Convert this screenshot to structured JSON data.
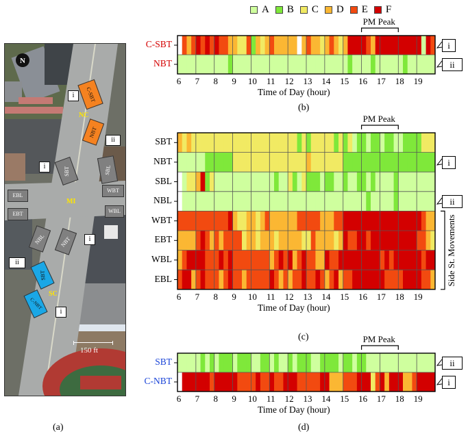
{
  "legend": {
    "items": [
      {
        "label": "A",
        "color": "#cfff9e"
      },
      {
        "label": "B",
        "color": "#7fe83a"
      },
      {
        "label": "C",
        "color": "#f1ea63"
      },
      {
        "label": "D",
        "color": "#fbb733"
      },
      {
        "label": "E",
        "color": "#f24a10"
      },
      {
        "label": "F",
        "color": "#d30000"
      }
    ]
  },
  "map_panel": {
    "caption": "(a)",
    "north_label": "N",
    "scale_label": "150 ft",
    "location_labels": [
      "NC",
      "MI",
      "SC"
    ],
    "arrows": [
      {
        "label": "C-SBT",
        "color": "#f58220"
      },
      {
        "label": "NBT",
        "color": "#f58220"
      },
      {
        "label": "SBT",
        "color": "#808080"
      },
      {
        "label": "SBL",
        "color": "#808080"
      },
      {
        "label": "EBL",
        "color": "#808080"
      },
      {
        "label": "WBT",
        "color": "#808080"
      },
      {
        "label": "EBT",
        "color": "#808080"
      },
      {
        "label": "WBL",
        "color": "#808080"
      },
      {
        "label": "NBL",
        "color": "#808080"
      },
      {
        "label": "NBT",
        "color": "#808080"
      },
      {
        "label": "SBT",
        "color": "#1aa7e6"
      },
      {
        "label": "C-NBT",
        "color": "#1aa7e6"
      }
    ],
    "callouts": [
      "i",
      "ii",
      "i",
      "i",
      "ii",
      "i"
    ]
  },
  "chart_data": [
    {
      "type": "heatmap",
      "panel": "(b)",
      "xlabel": "Time of Day (hour)",
      "x_ticks": [
        "6",
        "7",
        "8",
        "9",
        "10",
        "11",
        "12",
        "13",
        "14",
        "15",
        "16",
        "17",
        "18",
        "19"
      ],
      "x_range": [
        6,
        20
      ],
      "interval_minutes": 15,
      "annotation": {
        "label": "PM Peak",
        "from": 16,
        "to": 18
      },
      "rows": [
        {
          "name": "C-SBT",
          "label_color": "#d40000",
          "callout": "i",
          "los": "-EDEFEFEFEEDDCCEBDCDEDDDDD-DEDDCDEDCDFFFFEDFFFFFFFFFFAFEDDCD"
        },
        {
          "name": "NBT",
          "label_color": "#d40000",
          "callout": "ii",
          "los": "AAAAAAAAAAABAAAAAAAAAAAAAAAAAAAAAAAAABAAAABAAAAAABAAAA"
        }
      ]
    },
    {
      "type": "heatmap",
      "panel": "(c)",
      "xlabel": "Time of Day (hour)",
      "x_ticks": [
        "6",
        "7",
        "8",
        "9",
        "10",
        "11",
        "12",
        "13",
        "14",
        "15",
        "16",
        "17",
        "18",
        "19"
      ],
      "x_range": [
        6,
        20
      ],
      "interval_minutes": 15,
      "annotation": {
        "label": "PM Peak",
        "from": 16,
        "to": 18
      },
      "bracket_label": "Side St. Movements",
      "rows": [
        {
          "name": "SBT",
          "callout": "",
          "los": "DCDCCCCCCCCCCCCCCCCCCCCCCCBCBCCCCCBCBCABBABBABBAABBBBCCCCC"
        },
        {
          "name": "NBT",
          "callout": "i",
          "los": "AAAAAABBBBBBCCCCCCCCCCCCCCCCDCCCCCCCBBBBBBBBBBBBBBBBBBBBBBBC"
        },
        {
          "name": "SBL",
          "callout": "",
          "los": "-ACCDFBCAAAAAAAAAAAAABAACBACBBBABBAABAABBABAAAABAAAAAA"
        },
        {
          "name": "NBL",
          "callout": "ii",
          "los": "-AAAAAAAAAAAAAAAAAAAAAAAAAAAAAAAAAAAAAAAABAAAAABAAAAAA"
        },
        {
          "name": "WBT",
          "callout": "",
          "los": "EEEEEEEEEEEFDCCDDCDEDDDDDDEEEEEDDDEEFFFFFFFFFFFFFFFFFEDDDD"
        },
        {
          "name": "EBT",
          "callout": "",
          "los": "DDDDEFEDEDEEEECDDCDDDCDDDDDCCEDDDDCDFEEFFEFFFFFFFFFFEEDCCD"
        },
        {
          "name": "WBL",
          "callout": "",
          "los": "DEFFFFEEEFEFEEEEEEEEDEFEFDEFEEDDFEEFFFFFFFFFEFEFFFFFFEFFE"
        },
        {
          "name": "EBL",
          "callout": "",
          "los": "EFFDEFEEEDEFEEDEEEEEFEDEDEEFEEFEDEFDEEFFFFFFFEEEEFFFFEEDCEF"
        }
      ]
    },
    {
      "type": "heatmap",
      "panel": "(d)",
      "xlabel": "Time of Day (hour)",
      "x_ticks": [
        "6",
        "7",
        "8",
        "9",
        "10",
        "11",
        "12",
        "13",
        "14",
        "15",
        "16",
        "17",
        "18",
        "19"
      ],
      "x_range": [
        6,
        20
      ],
      "interval_minutes": 15,
      "annotation": {
        "label": "PM Peak",
        "from": 16,
        "to": 18
      },
      "rows": [
        {
          "name": "SBT",
          "label_color": "#1a44d8",
          "callout": "ii",
          "los": "AAAAABABABBBABBBAABBABAABABBBAABBBBABBABBAAAAAAAAAAAAAAABAB"
        },
        {
          "name": "C-NBT",
          "label_color": "#1a44d8",
          "callout": "i",
          "los": "-FFFFFFEFFFFFEEEEFEEFEEFFFEEEEEFFDDDEEEFFFCEFDFFFDDEFFF"
        }
      ]
    }
  ]
}
